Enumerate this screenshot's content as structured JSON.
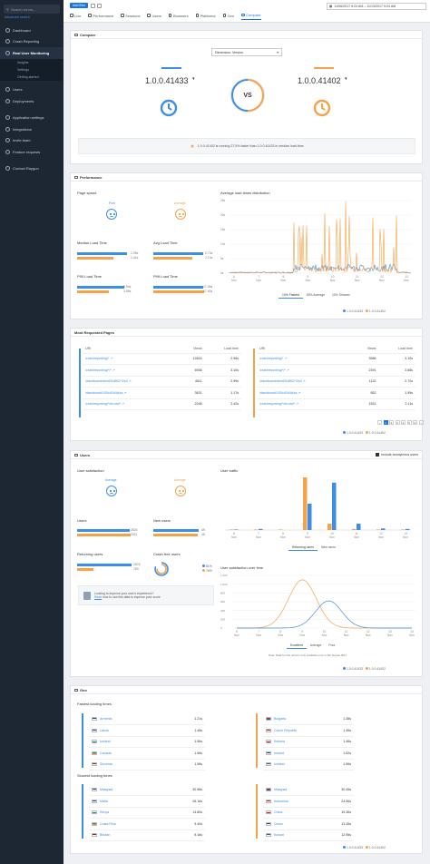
{
  "sidebar": {
    "search_placeholder": "Search errors...",
    "advanced_search": "Advanced search",
    "items": [
      {
        "label": "Dashboard"
      },
      {
        "label": "Crash Reporting"
      },
      {
        "label": "Real User Monitoring"
      },
      {
        "label": "Users"
      },
      {
        "label": "Deployments"
      },
      {
        "label": "Application settings"
      },
      {
        "label": "Integrations"
      },
      {
        "label": "Invite team"
      },
      {
        "label": "Feature requests"
      },
      {
        "label": "Contact Raygun"
      }
    ],
    "rum_sub": [
      "Insights",
      "Settings",
      "Getting started"
    ]
  },
  "topbar": {
    "add_filter": "Add filter",
    "daterange": "11/06/2017 9:24 AM – 11/13/2017 9:24 AM",
    "tabs": [
      "Live",
      "Performance",
      "Sessions",
      "Users",
      "Browsers",
      "Platforms",
      "Geo",
      "Compare"
    ]
  },
  "compare": {
    "title": "Compare",
    "dimension": "Dimension: Version",
    "version_a": "1.0.0.41433",
    "version_b": "1.0.0.41402",
    "vs": "VS",
    "insight": "1.0.0.41402 is running 27.5% faster than 1.0.0.41433 in median load time"
  },
  "performance": {
    "title": "Performance",
    "page_speed": "Page speed",
    "poor": "Poor",
    "average": "Average",
    "median_load": "Median Load Time",
    "avg_load": "Avg Load Time",
    "p90_load": "P90 Load Time",
    "p99_load": "P99 Load Time",
    "median_vals": [
      "1.95s",
      "1.41s"
    ],
    "avg_vals": [
      "2.73s",
      "2.13s"
    ],
    "p90_vals": [
      "5.94s",
      "3.95s"
    ],
    "p99_vals": [
      "17.06s",
      "17.40s"
    ],
    "dist_title": "Average load times distribution",
    "dist_tabs": [
      "10% Fastest",
      "80% Average",
      "10% Slowest"
    ],
    "legend": [
      "1.0.0.41433",
      "1.0.0.41402"
    ],
    "y_ticks": [
      "25s",
      "20s",
      "15s",
      "10s",
      "5s",
      "0s"
    ],
    "x_ticks": [
      "6 Nov",
      "7 Nov",
      "8 Nov",
      "9 Nov",
      "10 Nov",
      "11 Nov",
      "12 Nov",
      "13 Nov"
    ]
  },
  "most_requested": {
    "title": "Most Requested Pages",
    "headers": [
      "URI",
      "Views",
      "Load time"
    ],
    "left": [
      {
        "uri": "/crashreporting/*",
        "views": "12643",
        "load": "2.96s"
      },
      {
        "uri": "/crashreporting/*/*",
        "views": "6936",
        "load": "3.10s"
      },
      {
        "uri": "/dashboard/ahe83hdfk3?/2e4",
        "views": "4611",
        "load": "2.99s"
      },
      {
        "uri": "/dashboard/100cd2d4d/cs",
        "views": "3631",
        "load": "1.17s"
      },
      {
        "uri": "/crashreporting/*/errors/*",
        "views": "2248",
        "load": "2.42s"
      }
    ],
    "right": [
      {
        "uri": "/crashreporting/*",
        "views": "3586",
        "load": "3.10s"
      },
      {
        "uri": "/crashreporting/*/*",
        "views": "2391",
        "load": "2.68s"
      },
      {
        "uri": "/dashboard/ahe83hdfk3?/2e4",
        "views": "1132",
        "load": "2.72s"
      },
      {
        "uri": "/dashboard/100cd2d4d/cs",
        "views": "852",
        "load": "1.59s"
      },
      {
        "uri": "/crashreporting/*/errors/*",
        "views": "1531",
        "load": "2.11s"
      }
    ],
    "pages": [
      "1",
      "2",
      "3",
      "4",
      "5",
      "6"
    ],
    "legend": [
      "1.0.0.41433",
      "1.0.0.41402"
    ]
  },
  "users": {
    "title": "Users",
    "include_anon": "Include anonymous users",
    "satisfaction": "User satisfaction",
    "average": "Average",
    "users_label": "Users",
    "new_users_label": "New users",
    "users_vals": [
      "2824",
      "2911"
    ],
    "new_users_vals": [
      "49",
      "48"
    ],
    "returning_label": "Returning users",
    "returning_vals": [
      "2676",
      "783"
    ],
    "crash_free": "Crash free users",
    "crash_free_vals": [
      "81%",
      "76%"
    ],
    "prompt_title": "Looking to improve your user's experience?",
    "prompt_read": "Read",
    "prompt_rest": "how to use this data to improve your score",
    "traffic_title": "User traffic",
    "traffic_tabs": [
      "Returning users",
      "New users"
    ],
    "traffic_x": [
      "6 Nov",
      "7 Nov",
      "8 Nov",
      "9 Nov",
      "10 Nov",
      "11 Nov",
      "12 Nov",
      "13 Nov"
    ],
    "sat_title": "User satisfaction over time",
    "sat_y": [
      "1,200",
      "1,000",
      "800",
      "600",
      "400",
      "200",
      "0"
    ],
    "sat_x": [
      "6 Nov",
      "7 Nov",
      "8 Nov",
      "9 Nov",
      "10 Nov",
      "11 Nov",
      "12 Nov",
      "13 Nov",
      "14 Nov"
    ],
    "sat_tabs": [
      "Excellent",
      "Average",
      "Poor"
    ],
    "sat_note": "Note: Data for this chart is only available prior to 9th August 2017",
    "legend": [
      "1.0.0.41433",
      "1.0.0.41402"
    ]
  },
  "geo": {
    "title": "Geo",
    "fastest_title": "Fastest loading times",
    "slowest_title": "Slowest loading times",
    "fastest_left": [
      {
        "country": "Armenia",
        "time": "1.21s"
      },
      {
        "country": "Latvia",
        "time": "1.45s"
      },
      {
        "country": "Iceland",
        "time": "1.56s"
      },
      {
        "country": "Canada",
        "time": "1.56s"
      },
      {
        "country": "Slovenia",
        "time": "1.58s"
      }
    ],
    "fastest_right": [
      {
        "country": "Bulgaria",
        "time": "1.38s"
      },
      {
        "country": "Czech Republic",
        "time": "1.45s"
      },
      {
        "country": "Estonia",
        "time": "1.46s"
      },
      {
        "country": "Ireland",
        "time": "1.52s"
      },
      {
        "country": "Iceland",
        "time": "1.56s"
      }
    ],
    "slowest_left": [
      {
        "country": "Malaysia",
        "time": "30.56s"
      },
      {
        "country": "Malta",
        "time": "26.16s"
      },
      {
        "country": "Kenya",
        "time": "14.80s"
      },
      {
        "country": "Costa Rica",
        "time": "9.40s"
      },
      {
        "country": "Bhutan",
        "time": "9.16s"
      }
    ],
    "slowest_right": [
      {
        "country": "Malaysia",
        "time": "30.45s"
      },
      {
        "country": "Indonesia",
        "time": "24.56s"
      },
      {
        "country": "China",
        "time": "19.36s"
      },
      {
        "country": "Oman",
        "time": "13.45s"
      },
      {
        "country": "Kuwait",
        "time": "12.95s"
      }
    ],
    "legend": [
      "1.0.0.41433",
      "1.0.0.41402"
    ]
  },
  "colors": {
    "version_a": "#3d8ee6",
    "version_b": "#f4a34b",
    "sidebar": "#1d2633",
    "accent": "#1a73e8"
  }
}
